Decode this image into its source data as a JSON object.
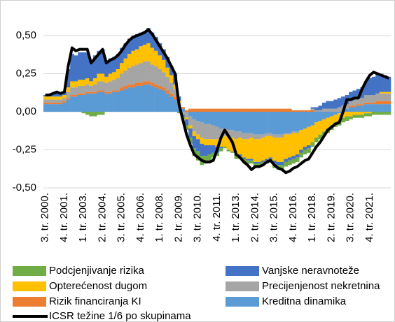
{
  "chart_data": {
    "type": "bar",
    "stacked": true,
    "categories": [
      "3. tr. 2000.",
      null,
      null,
      null,
      null,
      "4. tr. 2001.",
      null,
      null,
      null,
      null,
      "1. tr. 2003.",
      null,
      null,
      null,
      null,
      "2. tr. 2004.",
      null,
      null,
      null,
      null,
      "3. tr. 2005.",
      null,
      null,
      null,
      null,
      "4. tr. 2006.",
      null,
      null,
      null,
      null,
      "1. tr. 2008.",
      null,
      null,
      null,
      null,
      "2. tr. 2009.",
      null,
      null,
      null,
      null,
      "3. tr. 2010.",
      null,
      null,
      null,
      null,
      "4. tr. 2011.",
      null,
      null,
      null,
      null,
      "1. tr. 2013.",
      null,
      null,
      null,
      null,
      "2. tr. 2014.",
      null,
      null,
      null,
      null,
      "3. tr. 2015.",
      null,
      null,
      null,
      null,
      "4. tr. 2016.",
      null,
      null,
      null,
      null,
      "1. tr. 2018.",
      null,
      null,
      null,
      null,
      "2. tr. 2019.",
      null,
      null,
      null,
      null,
      "3. tr. 2020.",
      null,
      null,
      null,
      null,
      "4. tr. 2021.",
      null,
      null,
      null,
      null,
      null
    ],
    "ylim": [
      -0.5,
      0.7
    ],
    "yticks": [
      {
        "value": -0.5,
        "label": "-0,50"
      },
      {
        "value": -0.25,
        "label": "-0,25"
      },
      {
        "value": 0,
        "label": "0,00"
      },
      {
        "value": 0.25,
        "label": "0,25"
      },
      {
        "value": 0.5,
        "label": "0,50"
      }
    ],
    "grid": true,
    "series": [
      {
        "name": "Podcjenjivanje rizika",
        "color": "#70ad47",
        "values": [
          0,
          0,
          0,
          0,
          0,
          0,
          0,
          0,
          0,
          0,
          -0.01,
          -0.02,
          -0.03,
          -0.03,
          -0.02,
          -0.02,
          0,
          0,
          0,
          0,
          0,
          0,
          0,
          0,
          0,
          0,
          0,
          0,
          0,
          0,
          0,
          0,
          0,
          0,
          0,
          -0.01,
          -0.02,
          -0.03,
          -0.04,
          -0.05,
          -0.06,
          -0.06,
          -0.05,
          -0.04,
          -0.03,
          -0.02,
          -0.02,
          -0.01,
          -0.01,
          -0.01,
          -0.02,
          -0.02,
          -0.02,
          -0.02,
          -0.02,
          -0.02,
          -0.02,
          -0.02,
          -0.02,
          -0.02,
          -0.03,
          -0.03,
          -0.03,
          -0.03,
          -0.03,
          -0.03,
          -0.03,
          -0.03,
          -0.03,
          -0.03,
          -0.03,
          -0.03,
          -0.03,
          -0.03,
          -0.03,
          -0.03,
          -0.03,
          -0.03,
          -0.03,
          -0.03,
          -0.02,
          -0.02,
          -0.02,
          -0.02,
          -0.02,
          -0.02,
          -0.02,
          -0.02,
          -0.02,
          -0.02,
          -0.02
        ]
      },
      {
        "name": "Vanjske neravnoteže",
        "color": "#4472c4",
        "values": [
          0.01,
          0.01,
          0.02,
          0.03,
          0.02,
          0.02,
          0.12,
          0.18,
          0.17,
          0.18,
          0.18,
          0.17,
          0.14,
          0.15,
          0.15,
          0.16,
          0.1,
          0.1,
          0.1,
          0.1,
          0.1,
          0.1,
          0.1,
          0.1,
          0.1,
          0.09,
          0.09,
          0.1,
          0.1,
          0.09,
          0.08,
          0.07,
          0.07,
          0.06,
          0.07,
          0.03,
          -0.01,
          -0.04,
          -0.06,
          -0.08,
          -0.08,
          -0.08,
          -0.07,
          -0.06,
          -0.05,
          -0.04,
          -0.01,
          0,
          0,
          0,
          -0.01,
          -0.01,
          -0.01,
          -0.01,
          -0.01,
          -0.01,
          -0.01,
          -0.01,
          -0.01,
          -0.01,
          -0.02,
          -0.02,
          -0.02,
          -0.02,
          -0.02,
          -0.02,
          -0.02,
          -0.02,
          -0.02,
          -0.02,
          0.01,
          0.02,
          0.03,
          0.04,
          0.05,
          0.05,
          0.06,
          0.06,
          0.06,
          0.06,
          0.06,
          0.06,
          0.06,
          0.07,
          0.09,
          0.11,
          0.12,
          0.13,
          0.12,
          0.11,
          0.1
        ]
      },
      {
        "name": "Opterećenost dugom",
        "color": "#ffc000",
        "values": [
          0.02,
          0.02,
          0.02,
          0.02,
          0.02,
          0.02,
          0.03,
          0.04,
          0.04,
          0.04,
          0.04,
          0.04,
          0.03,
          0.04,
          0.05,
          0.05,
          0.04,
          0.05,
          0.05,
          0.06,
          0.07,
          0.08,
          0.09,
          0.1,
          0.1,
          0.11,
          0.11,
          0.12,
          0.11,
          0.1,
          0.09,
          0.08,
          0.06,
          0.05,
          0.03,
          0.01,
          0,
          -0.01,
          -0.02,
          -0.03,
          -0.03,
          -0.04,
          -0.04,
          -0.04,
          -0.04,
          -0.05,
          -0.06,
          -0.07,
          -0.08,
          -0.09,
          -0.1,
          -0.11,
          -0.12,
          -0.13,
          -0.14,
          -0.15,
          -0.15,
          -0.15,
          -0.15,
          -0.14,
          -0.15,
          -0.16,
          -0.16,
          -0.16,
          -0.15,
          -0.15,
          -0.14,
          -0.13,
          -0.12,
          -0.12,
          -0.11,
          -0.1,
          -0.09,
          -0.08,
          -0.07,
          -0.06,
          -0.05,
          -0.05,
          -0.04,
          -0.03,
          -0.03,
          -0.02,
          -0.02,
          -0.02,
          -0.01,
          -0.01,
          0,
          0,
          0.01,
          0.01,
          0.01
        ]
      },
      {
        "name": "Precijenjenost nekretnina",
        "color": "#a5a5a5",
        "values": [
          0.02,
          0.02,
          0.02,
          0.02,
          0.02,
          0.02,
          0.04,
          0.05,
          0.05,
          0.05,
          0.05,
          0.05,
          0.04,
          0.05,
          0.06,
          0.06,
          0.06,
          0.07,
          0.07,
          0.08,
          0.09,
          0.1,
          0.11,
          0.12,
          0.12,
          0.13,
          0.13,
          0.13,
          0.12,
          0.12,
          0.11,
          0.1,
          0.09,
          0.07,
          0.05,
          0.01,
          -0.02,
          -0.04,
          -0.06,
          -0.08,
          -0.09,
          -0.1,
          -0.1,
          -0.1,
          -0.09,
          -0.08,
          -0.06,
          -0.05,
          -0.05,
          -0.05,
          -0.05,
          -0.04,
          -0.04,
          -0.04,
          -0.03,
          -0.03,
          -0.03,
          -0.02,
          -0.02,
          -0.02,
          -0.02,
          -0.02,
          -0.02,
          -0.01,
          -0.01,
          -0.01,
          -0.01,
          0,
          0,
          0,
          0.01,
          0.01,
          0.01,
          0.02,
          0.02,
          0.02,
          0.02,
          0.03,
          0.03,
          0.03,
          0.03,
          0.04,
          0.04,
          0.04,
          0.05,
          0.05,
          0.05,
          0.05,
          0.05,
          0.05,
          0.05
        ]
      },
      {
        "name": "Rizik financiranja KI",
        "color": "#ed7d31",
        "values": [
          0.01,
          0.01,
          0.01,
          0.01,
          0.01,
          0.01,
          0.01,
          0.01,
          0.01,
          0.01,
          0.01,
          0.01,
          0.01,
          0.01,
          0.01,
          0.01,
          0.01,
          0.01,
          0.01,
          0.01,
          0.02,
          0.02,
          0.02,
          0.02,
          0.02,
          0.02,
          0.02,
          0.02,
          0.02,
          0.02,
          0.02,
          0.02,
          0.02,
          0.02,
          0.02,
          0.01,
          0.01,
          0.01,
          0.02,
          0.02,
          0.02,
          0.02,
          0.02,
          0.02,
          0.02,
          0.02,
          0.02,
          0.02,
          0.02,
          0.02,
          0.02,
          0.02,
          0.02,
          0.02,
          0.02,
          0.02,
          0.02,
          0.02,
          0.02,
          0.02,
          0.02,
          0.02,
          0.02,
          0.02,
          0.02,
          0.01,
          0.01,
          0.01,
          0.01,
          0.01,
          0.01,
          0,
          0,
          0,
          0,
          0,
          0,
          0,
          0,
          0,
          0.01,
          0.01,
          0.01,
          0.01,
          0.01,
          0.01,
          0.01,
          0.02,
          0.02,
          0.02,
          0.02
        ]
      },
      {
        "name": "Kreditna dinamika",
        "color": "#5b9bd5",
        "values": [
          0.05,
          0.05,
          0.05,
          0.05,
          0.05,
          0.06,
          0.08,
          0.1,
          0.1,
          0.11,
          0.11,
          0.12,
          0.12,
          0.12,
          0.13,
          0.13,
          0.12,
          0.12,
          0.13,
          0.13,
          0.14,
          0.15,
          0.16,
          0.16,
          0.17,
          0.17,
          0.18,
          0.18,
          0.17,
          0.16,
          0.15,
          0.14,
          0.12,
          0.1,
          0.08,
          0.04,
          0.02,
          0,
          -0.03,
          -0.05,
          -0.06,
          -0.07,
          -0.08,
          -0.08,
          -0.09,
          -0.1,
          -0.11,
          -0.11,
          -0.12,
          -0.12,
          -0.13,
          -0.13,
          -0.14,
          -0.14,
          -0.14,
          -0.15,
          -0.15,
          -0.15,
          -0.14,
          -0.14,
          -0.15,
          -0.15,
          -0.15,
          -0.14,
          -0.14,
          -0.13,
          -0.13,
          -0.12,
          -0.11,
          -0.1,
          -0.09,
          -0.07,
          -0.06,
          -0.05,
          -0.04,
          -0.03,
          -0.02,
          -0.01,
          0.01,
          0.02,
          0.03,
          0.03,
          0.04,
          0.04,
          0.05,
          0.05,
          0.05,
          0.05,
          0.05,
          0.05,
          0.05
        ]
      }
    ],
    "line": {
      "name": "ICSR težine 1/6 po skupinama",
      "color": "#000000",
      "values": [
        0.11,
        0.11,
        0.12,
        0.13,
        0.12,
        0.13,
        0.3,
        0.42,
        0.4,
        0.41,
        0.41,
        0.41,
        0.32,
        0.35,
        0.38,
        0.41,
        0.32,
        0.34,
        0.35,
        0.37,
        0.4,
        0.44,
        0.47,
        0.49,
        0.5,
        0.51,
        0.52,
        0.54,
        0.51,
        0.47,
        0.43,
        0.39,
        0.35,
        0.3,
        0.25,
        0.05,
        -0.05,
        -0.15,
        -0.22,
        -0.28,
        -0.3,
        -0.32,
        -0.33,
        -0.33,
        -0.32,
        -0.25,
        -0.17,
        -0.12,
        -0.16,
        -0.2,
        -0.28,
        -0.3,
        -0.33,
        -0.35,
        -0.38,
        -0.36,
        -0.36,
        -0.35,
        -0.33,
        -0.32,
        -0.35,
        -0.37,
        -0.38,
        -0.4,
        -0.39,
        -0.37,
        -0.36,
        -0.34,
        -0.32,
        -0.31,
        -0.27,
        -0.23,
        -0.2,
        -0.16,
        -0.12,
        -0.1,
        -0.08,
        -0.07,
        0,
        0.08,
        0.08,
        0.09,
        0.09,
        0.15,
        0.2,
        0.24,
        0.26,
        0.25,
        0.24,
        0.23,
        0.22
      ]
    }
  }
}
